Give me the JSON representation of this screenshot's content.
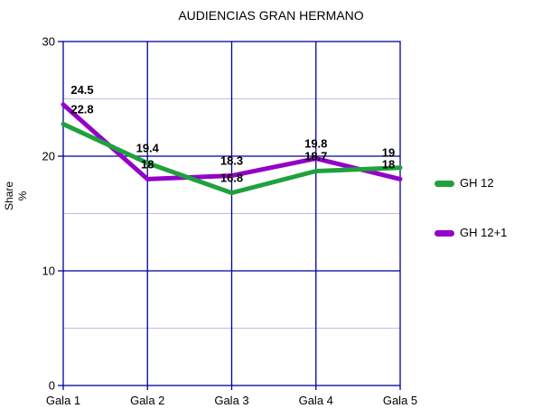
{
  "chart_data": {
    "type": "line",
    "title": "AUDIENCIAS GRAN HERMANO",
    "ylabel": "Share\n%",
    "categories": [
      "Gala 1",
      "Gala 2",
      "Gala 3",
      "Gala 4",
      "Gala 5"
    ],
    "series": [
      {
        "name": "GH 12",
        "color": "#1fa13d",
        "values": [
          22.8,
          19.4,
          16.8,
          18.7,
          19
        ]
      },
      {
        "name": "GH 12+1",
        "color": "#9402c8",
        "values": [
          24.5,
          18,
          18.3,
          19.8,
          18
        ]
      }
    ],
    "ylim": [
      0,
      30
    ],
    "yticks_major": [
      0,
      10,
      20,
      30
    ],
    "yticks_minor": [
      5,
      15,
      25
    ],
    "grid": {
      "on": true,
      "major_color": "#000099",
      "minor_color": "#bcbce8"
    },
    "line_width": 5,
    "data_labels": true,
    "legend_position": "right",
    "text_color": "#000000",
    "background_color": "#ffffff"
  }
}
